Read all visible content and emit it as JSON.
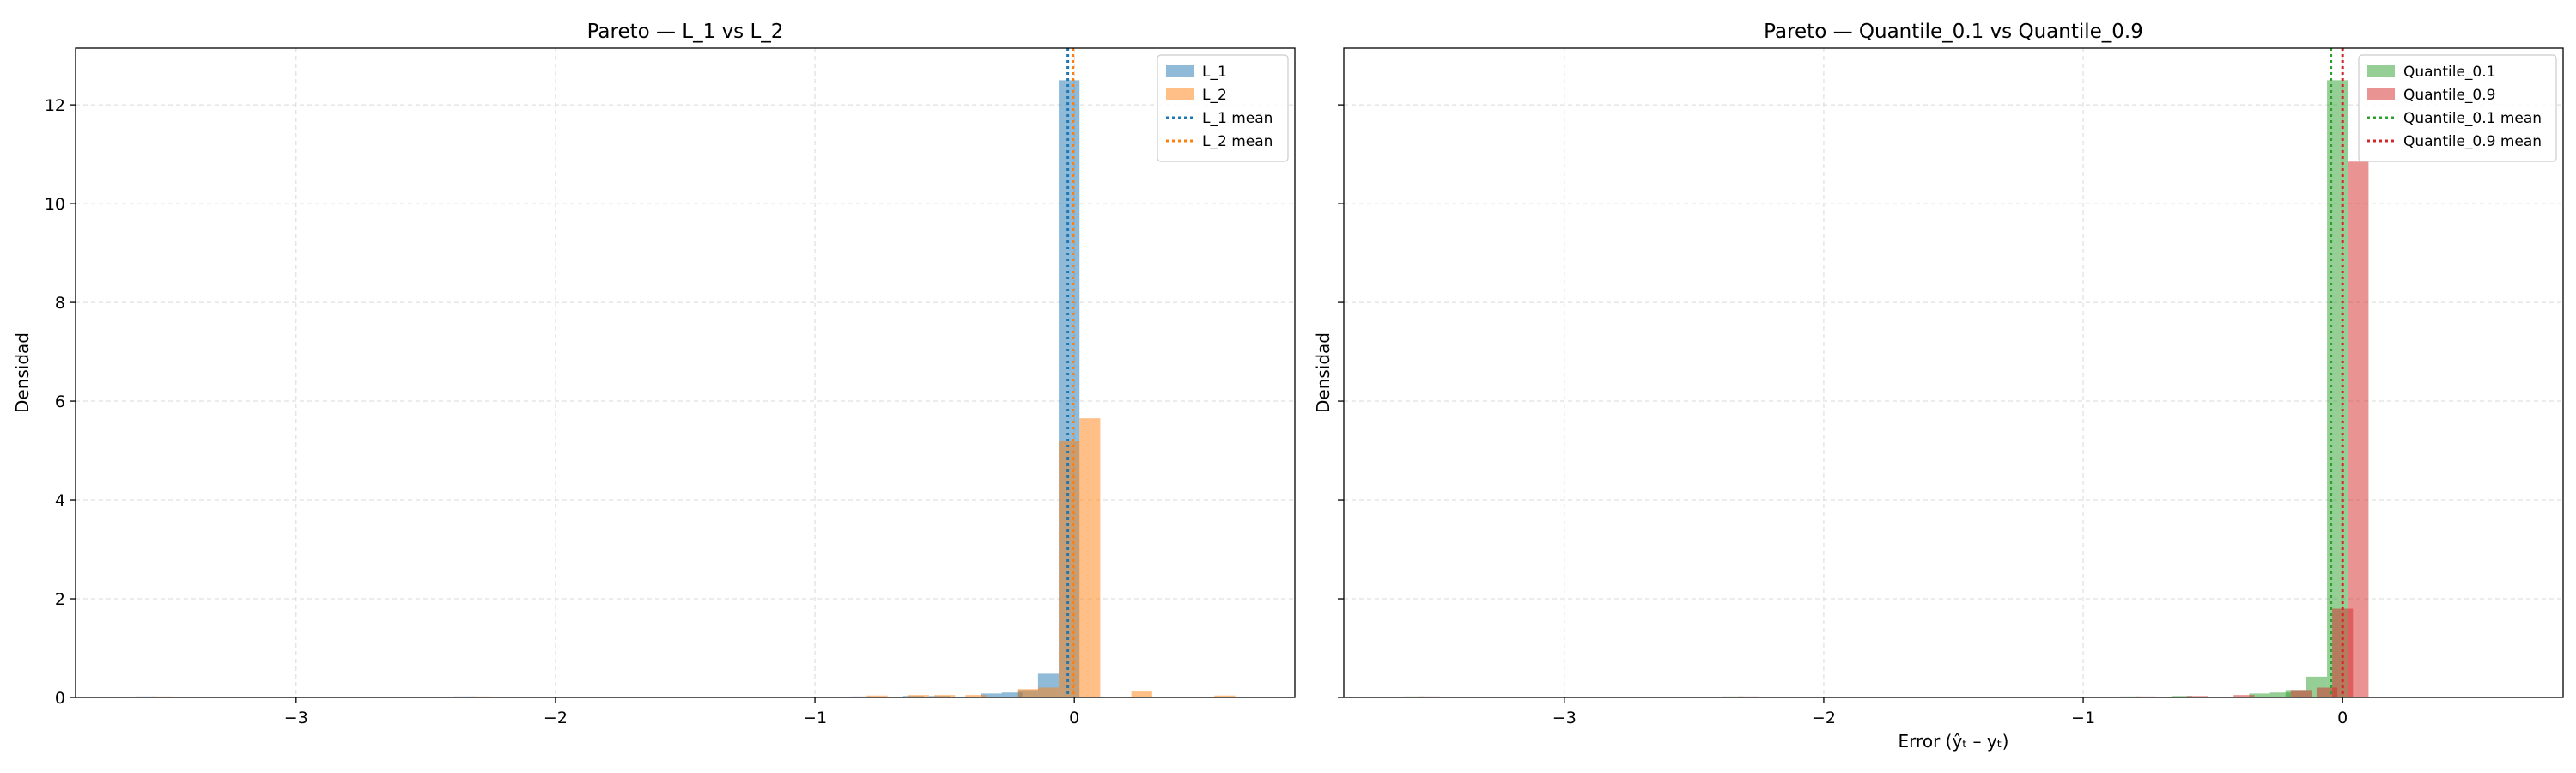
{
  "chart_data": [
    {
      "type": "histogram",
      "title": "Pareto — L_1 vs L_2",
      "xlabel": "",
      "ylabel": "Densidad",
      "xlim": [
        -3.85,
        0.85
      ],
      "ylim": [
        0,
        13.15
      ],
      "xticks": [
        -3,
        -2,
        -1,
        0
      ],
      "yticks": [
        0,
        2,
        4,
        6,
        8,
        10,
        12
      ],
      "grid": true,
      "legend_position": "top-right",
      "bin_width": 0.08,
      "series": [
        {
          "name": "L_1",
          "color": "#1f77b4",
          "bins": [
            {
              "x0": -3.62,
              "y": 0.02
            },
            {
              "x0": -2.39,
              "y": 0.02
            },
            {
              "x0": -0.86,
              "y": 0.02
            },
            {
              "x0": -0.66,
              "y": 0.03
            },
            {
              "x0": -0.56,
              "y": 0.03
            },
            {
              "x0": -0.36,
              "y": 0.08
            },
            {
              "x0": -0.28,
              "y": 0.1
            },
            {
              "x0": -0.22,
              "y": 0.15
            },
            {
              "x0": -0.14,
              "y": 0.48
            },
            {
              "x0": -0.06,
              "y": 12.5
            }
          ]
        },
        {
          "name": "L_2",
          "color": "#ff7f0e",
          "bins": [
            {
              "x0": -3.56,
              "y": 0.02
            },
            {
              "x0": -2.33,
              "y": 0.02
            },
            {
              "x0": -0.8,
              "y": 0.04
            },
            {
              "x0": -0.64,
              "y": 0.05
            },
            {
              "x0": -0.54,
              "y": 0.05
            },
            {
              "x0": -0.42,
              "y": 0.05
            },
            {
              "x0": -0.22,
              "y": 0.17
            },
            {
              "x0": -0.14,
              "y": 0.2
            },
            {
              "x0": -0.06,
              "y": 5.2
            },
            {
              "x0": 0.02,
              "y": 5.65
            },
            {
              "x0": 0.22,
              "y": 0.12
            },
            {
              "x0": 0.54,
              "y": 0.04
            }
          ],
          "mean": 0.0
        }
      ],
      "means": [
        {
          "name": "L_1 mean",
          "value": -0.025,
          "color": "#1f77b4"
        },
        {
          "name": "L_2 mean",
          "value": -0.005,
          "color": "#ff7f0e"
        }
      ]
    },
    {
      "type": "histogram",
      "title": "Pareto — Quantile_0.1 vs Quantile_0.9",
      "xlabel": "Error (ŷₜ – yₜ)",
      "ylabel": "Densidad",
      "xlim": [
        -3.85,
        0.85
      ],
      "ylim": [
        0,
        13.15
      ],
      "xticks": [
        -3,
        -2,
        -1,
        0
      ],
      "yticks": [
        0,
        2,
        4,
        6,
        8,
        10,
        12
      ],
      "grid": true,
      "legend_position": "top-right",
      "bin_width": 0.08,
      "series": [
        {
          "name": "Quantile_0.1",
          "color": "#2ca02c",
          "bins": [
            {
              "x0": -3.62,
              "y": 0.02
            },
            {
              "x0": -2.39,
              "y": 0.02
            },
            {
              "x0": -0.86,
              "y": 0.02
            },
            {
              "x0": -0.66,
              "y": 0.03
            },
            {
              "x0": -0.36,
              "y": 0.08
            },
            {
              "x0": -0.28,
              "y": 0.1
            },
            {
              "x0": -0.22,
              "y": 0.15
            },
            {
              "x0": -0.14,
              "y": 0.42
            },
            {
              "x0": -0.06,
              "y": 12.5
            }
          ]
        },
        {
          "name": "Quantile_0.9",
          "color": "#d62728",
          "bins": [
            {
              "x0": -3.56,
              "y": 0.02
            },
            {
              "x0": -2.33,
              "y": 0.02
            },
            {
              "x0": -0.8,
              "y": 0.02
            },
            {
              "x0": -0.6,
              "y": 0.03
            },
            {
              "x0": -0.42,
              "y": 0.05
            },
            {
              "x0": -0.2,
              "y": 0.15
            },
            {
              "x0": -0.1,
              "y": 0.2
            },
            {
              "x0": -0.04,
              "y": 1.8
            },
            {
              "x0": 0.02,
              "y": 10.85
            }
          ]
        }
      ],
      "means": [
        {
          "name": "Quantile_0.1 mean",
          "value": -0.045,
          "color": "#2ca02c"
        },
        {
          "name": "Quantile_0.9 mean",
          "value": 0.0,
          "color": "#d62728"
        }
      ]
    }
  ]
}
